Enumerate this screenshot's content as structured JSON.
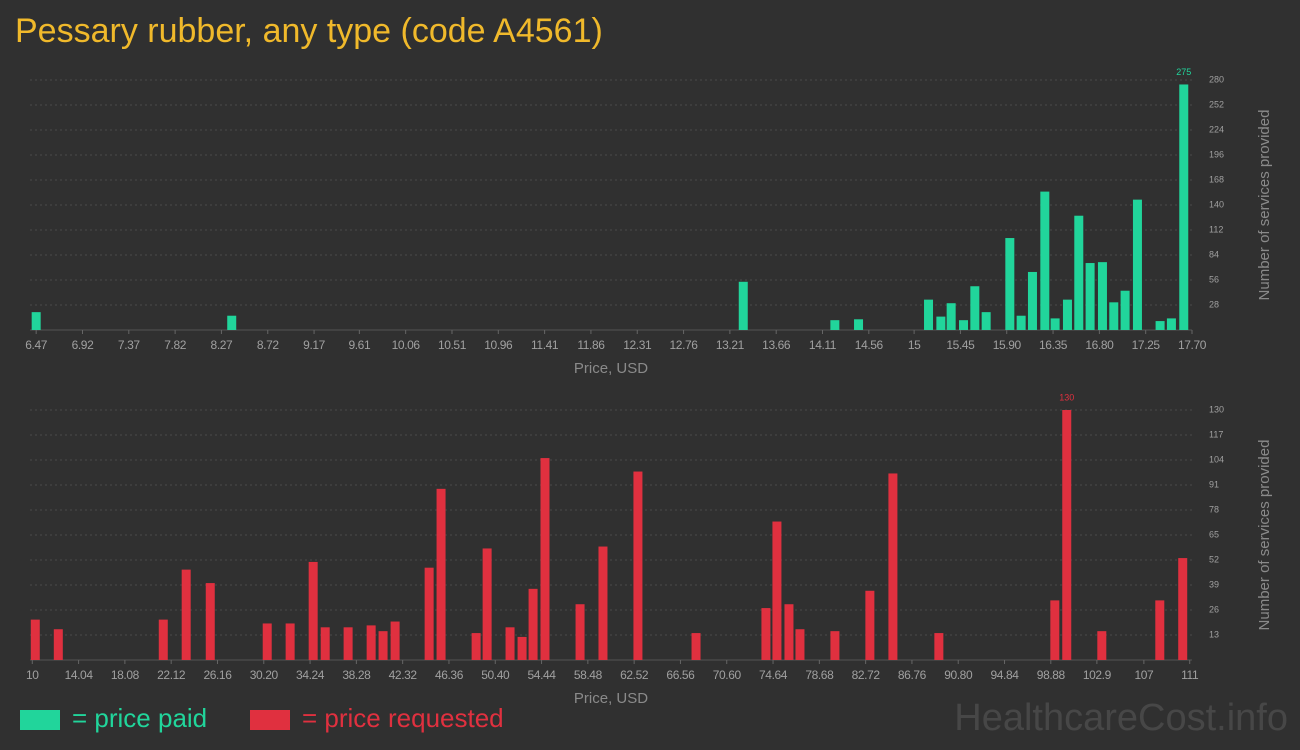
{
  "title": "Pessary rubber, any type (code A4561)",
  "watermark": "HealthcareCost.info",
  "legend": [
    {
      "label": "= price paid",
      "color": "#21d59b"
    },
    {
      "label": "= price requested",
      "color": "#e0303f"
    }
  ],
  "chart_data": [
    {
      "type": "bar",
      "color": "#21d59b",
      "xlabel": "Price, USD",
      "ylabel": "Number of services provided",
      "grid": true,
      "xlim": [
        6.41,
        17.7
      ],
      "ylim": [
        0,
        280
      ],
      "xticks": [
        6.47,
        6.92,
        7.37,
        7.82,
        8.27,
        8.72,
        9.17,
        9.61,
        10.06,
        10.51,
        10.96,
        11.41,
        11.86,
        12.31,
        12.76,
        13.21,
        13.66,
        14.11,
        14.56,
        15,
        15.45,
        {
          "value": 15.9,
          "label": "15.90"
        },
        16.35,
        {
          "value": 16.8,
          "label": "16.80"
        },
        17.25,
        {
          "value": 17.7,
          "label": "17.70"
        }
      ],
      "yticks": [
        28,
        56,
        84,
        112,
        140,
        168,
        196,
        224,
        252,
        280
      ],
      "x": [
        6.47,
        8.37,
        13.34,
        14.23,
        14.46,
        15.14,
        15.26,
        15.36,
        15.48,
        15.59,
        15.7,
        15.93,
        16.04,
        16.15,
        16.27,
        16.37,
        16.49,
        16.6,
        16.71,
        16.83,
        16.94,
        17.05,
        17.17,
        17.39,
        17.5,
        17.62
      ],
      "values": [
        20,
        16,
        54,
        11,
        12,
        34,
        15,
        30,
        11,
        49,
        20,
        103,
        16,
        65,
        155,
        13,
        34,
        128,
        75,
        76,
        31,
        44,
        146,
        10,
        13,
        275
      ]
    },
    {
      "type": "bar",
      "color": "#e0303f",
      "xlabel": "Price, USD",
      "ylabel": "Number of services provided",
      "grid": true,
      "xlim": [
        9.8,
        111.2
      ],
      "ylim": [
        0,
        130
      ],
      "xticks": [
        10,
        14.04,
        18.08,
        22.12,
        26.16,
        {
          "value": 30.2,
          "label": "30.20"
        },
        34.24,
        38.28,
        42.32,
        46.36,
        {
          "value": 50.4,
          "label": "50.40"
        },
        54.44,
        58.48,
        62.52,
        66.56,
        {
          "value": 70.6,
          "label": "70.60"
        },
        74.64,
        78.68,
        82.72,
        86.76,
        {
          "value": 90.8,
          "label": "90.80"
        },
        94.84,
        98.88,
        102.9,
        107,
        111
      ],
      "yticks": [
        13,
        26,
        39,
        52,
        65,
        78,
        91,
        104,
        117,
        130
      ],
      "x": [
        10.26,
        12.27,
        21.43,
        23.43,
        25.53,
        30.5,
        32.5,
        34.51,
        35.56,
        37.56,
        39.57,
        40.61,
        41.66,
        44.63,
        45.67,
        48.73,
        49.69,
        51.69,
        52.74,
        53.7,
        54.74,
        57.8,
        59.8,
        62.85,
        67.92,
        74.02,
        74.98,
        76.03,
        76.99,
        80.04,
        83.09,
        85.1,
        89.11,
        99.23,
        100.27,
        103.33,
        108.39,
        110.39
      ],
      "values": [
        21,
        16,
        21,
        47,
        40,
        19,
        19,
        51,
        17,
        17,
        18,
        15,
        20,
        48,
        89,
        14,
        58,
        17,
        12,
        37,
        105,
        29,
        59,
        98,
        14,
        27,
        72,
        29,
        16,
        15,
        36,
        97,
        14,
        31,
        130,
        15,
        31,
        53
      ]
    }
  ]
}
